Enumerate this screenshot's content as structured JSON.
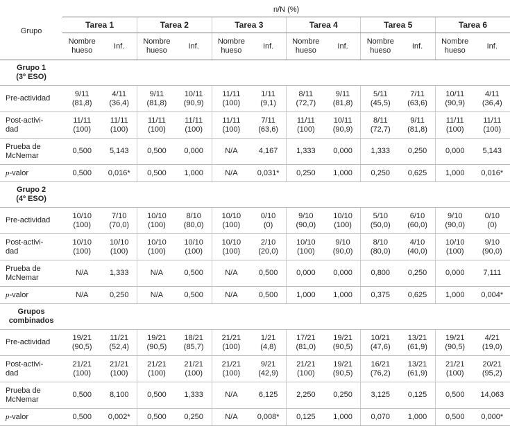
{
  "header": {
    "measure": "n/N (%)",
    "group_col": "Grupo",
    "tasks": [
      "Tarea 1",
      "Tarea 2",
      "Tarea 3",
      "Tarea 4",
      "Tarea 5",
      "Tarea 6"
    ],
    "subcols": [
      [
        "Nombre",
        "hueso"
      ],
      [
        "Inf."
      ]
    ]
  },
  "groups": [
    {
      "title": [
        "Grupo 1",
        "(3º ESO)"
      ],
      "rows": [
        {
          "label": [
            "Pre-actividad"
          ],
          "cells": [
            [
              "9/11",
              "(81,8)"
            ],
            [
              "4/11",
              "(36,4)"
            ],
            [
              "9/11",
              "(81,8)"
            ],
            [
              "10/11",
              "(90,9)"
            ],
            [
              "11/11",
              "(100)"
            ],
            [
              "1/11",
              "(9,1)"
            ],
            [
              "8/11",
              "(72,7)"
            ],
            [
              "9/11",
              "(81,8)"
            ],
            [
              "5/11",
              "(45,5)"
            ],
            [
              "7/11",
              "(63,6)"
            ],
            [
              "10/11",
              "(90,9)"
            ],
            [
              "4/11",
              "(36,4)"
            ]
          ]
        },
        {
          "label": [
            "Post-activi-",
            "dad"
          ],
          "cells": [
            [
              "11/11",
              "(100)"
            ],
            [
              "11/11",
              "(100)"
            ],
            [
              "11/11",
              "(100)"
            ],
            [
              "11/11",
              "(100)"
            ],
            [
              "11/11",
              "(100)"
            ],
            [
              "7/11",
              "(63,6)"
            ],
            [
              "11/11",
              "(100)"
            ],
            [
              "10/11",
              "(90,9)"
            ],
            [
              "8/11",
              "(72,7)"
            ],
            [
              "9/11",
              "(81,8)"
            ],
            [
              "11/11",
              "(100)"
            ],
            [
              "11/11",
              "(100)"
            ]
          ]
        },
        {
          "label": [
            "Prueba de",
            "McNemar"
          ],
          "cells": [
            [
              "0,500"
            ],
            [
              "5,143"
            ],
            [
              "0,500"
            ],
            [
              "0,000"
            ],
            [
              "N/A"
            ],
            [
              "4,167"
            ],
            [
              "1,333"
            ],
            [
              "0,000"
            ],
            [
              "1,333"
            ],
            [
              "0,250"
            ],
            [
              "0,000"
            ],
            [
              "5,143"
            ]
          ]
        },
        {
          "label": [
            "p-valor"
          ],
          "cells": [
            [
              "0,500"
            ],
            [
              "0,016*"
            ],
            [
              "0,500"
            ],
            [
              "1,000"
            ],
            [
              "N/A"
            ],
            [
              "0,031*"
            ],
            [
              "0,250"
            ],
            [
              "1,000"
            ],
            [
              "0,250"
            ],
            [
              "0,625"
            ],
            [
              "1,000"
            ],
            [
              "0,016*"
            ]
          ]
        }
      ]
    },
    {
      "title": [
        "Grupo 2",
        "(4º ESO)"
      ],
      "rows": [
        {
          "label": [
            "Pre-actividad"
          ],
          "cells": [
            [
              "10/10",
              "(100)"
            ],
            [
              "7/10",
              "(70,0)"
            ],
            [
              "10/10",
              "(100)"
            ],
            [
              "8/10",
              "(80,0)"
            ],
            [
              "10/10",
              "(100)"
            ],
            [
              "0/10",
              "(0)"
            ],
            [
              "9/10",
              "(90,0)"
            ],
            [
              "10/10",
              "(100)"
            ],
            [
              "5/10",
              "(50,0)"
            ],
            [
              "6/10",
              "(60,0)"
            ],
            [
              "9/10",
              "(90,0)"
            ],
            [
              "0/10",
              "(0)"
            ]
          ]
        },
        {
          "label": [
            "Post-activi-",
            "dad"
          ],
          "cells": [
            [
              "10/10",
              "(100)"
            ],
            [
              "10/10",
              "(100)"
            ],
            [
              "10/10",
              "(100)"
            ],
            [
              "10/10",
              "(100)"
            ],
            [
              "10/10",
              "(100)"
            ],
            [
              "2/10",
              "(20,0)"
            ],
            [
              "10/10",
              "(100)"
            ],
            [
              "9/10",
              "(90,0)"
            ],
            [
              "8/10",
              "(80,0)"
            ],
            [
              "4/10",
              "(40,0)"
            ],
            [
              "10/10",
              "(100)"
            ],
            [
              "9/10",
              "(90,0)"
            ]
          ]
        },
        {
          "label": [
            "Prueba de",
            "McNemar"
          ],
          "cells": [
            [
              "N/A"
            ],
            [
              "1,333"
            ],
            [
              "N/A"
            ],
            [
              "0,500"
            ],
            [
              "N/A"
            ],
            [
              "0,500"
            ],
            [
              "0,000"
            ],
            [
              "0,000"
            ],
            [
              "0,800"
            ],
            [
              "0,250"
            ],
            [
              "0,000"
            ],
            [
              "7,111"
            ]
          ]
        },
        {
          "label": [
            "p-valor"
          ],
          "cells": [
            [
              "N/A"
            ],
            [
              "0,250"
            ],
            [
              "N/A"
            ],
            [
              "0,500"
            ],
            [
              "N/A"
            ],
            [
              "0,500"
            ],
            [
              "1,000"
            ],
            [
              "1,000"
            ],
            [
              "0,375"
            ],
            [
              "0,625"
            ],
            [
              "1,000"
            ],
            [
              "0,004*"
            ]
          ]
        }
      ]
    },
    {
      "title": [
        "Grupos",
        "combinados"
      ],
      "rows": [
        {
          "label": [
            "Pre-actividad"
          ],
          "cells": [
            [
              "19/21",
              "(90,5)"
            ],
            [
              "11/21",
              "(52,4)"
            ],
            [
              "19/21",
              "(90,5)"
            ],
            [
              "18/21",
              "(85,7)"
            ],
            [
              "21/21",
              "(100)"
            ],
            [
              "1/21",
              "(4,8)"
            ],
            [
              "17/21",
              "(81,0)"
            ],
            [
              "19/21",
              "(90,5)"
            ],
            [
              "10/21",
              "(47,6)"
            ],
            [
              "13/21",
              "(61,9)"
            ],
            [
              "19/21",
              "(90,5)"
            ],
            [
              "4/21",
              "(19,0)"
            ]
          ]
        },
        {
          "label": [
            "Post-activi-",
            "dad"
          ],
          "cells": [
            [
              "21/21",
              "(100)"
            ],
            [
              "21/21",
              "(100)"
            ],
            [
              "21/21",
              "(100)"
            ],
            [
              "21/21",
              "(100)"
            ],
            [
              "21/21",
              "(100)"
            ],
            [
              "9/21",
              "(42,9)"
            ],
            [
              "21/21",
              "(100)"
            ],
            [
              "19/21",
              "(90,5)"
            ],
            [
              "16/21",
              "(76,2)"
            ],
            [
              "13/21",
              "(61,9)"
            ],
            [
              "21/21",
              "(100)"
            ],
            [
              "20/21",
              "(95,2)"
            ]
          ]
        },
        {
          "label": [
            "Prueba de",
            "McNemar"
          ],
          "cells": [
            [
              "0,500"
            ],
            [
              "8,100"
            ],
            [
              "0,500"
            ],
            [
              "1,333"
            ],
            [
              "N/A"
            ],
            [
              "6,125"
            ],
            [
              "2,250"
            ],
            [
              "0,250"
            ],
            [
              "3,125"
            ],
            [
              "0,125"
            ],
            [
              "0,500"
            ],
            [
              "14,063"
            ]
          ]
        },
        {
          "label": [
            "p-valor"
          ],
          "cells": [
            [
              "0,500"
            ],
            [
              "0,002*"
            ],
            [
              "0,500"
            ],
            [
              "0,250"
            ],
            [
              "N/A"
            ],
            [
              "0,008*"
            ],
            [
              "0,125"
            ],
            [
              "1,000"
            ],
            [
              "0,070"
            ],
            [
              "1,000"
            ],
            [
              "0,500"
            ],
            [
              "0,000*"
            ]
          ]
        }
      ]
    }
  ]
}
